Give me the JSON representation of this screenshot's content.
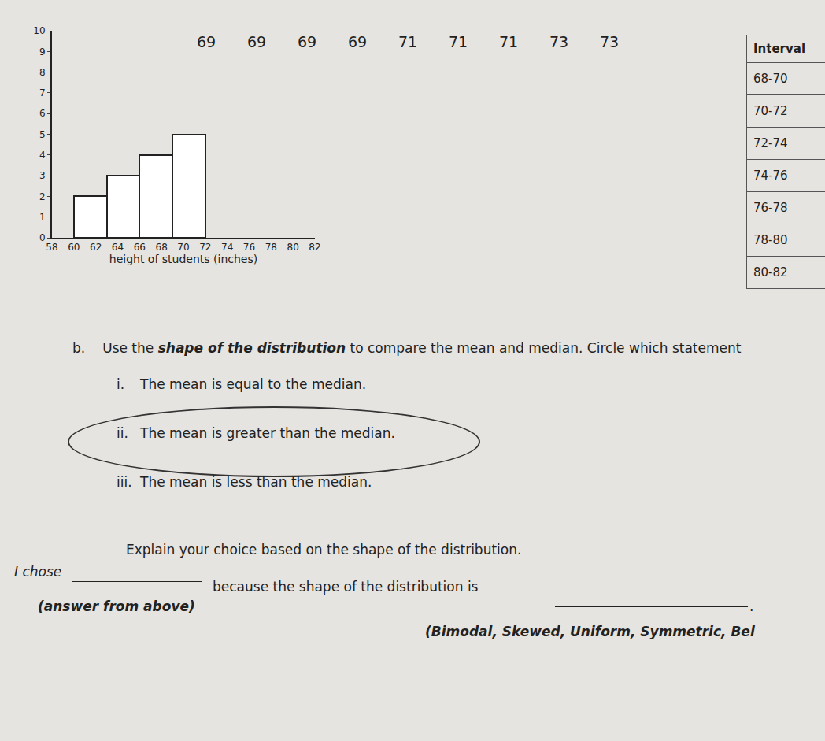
{
  "chart_data": {
    "type": "histogram",
    "xlabel": "height of students (inches)",
    "bins": [
      60,
      63,
      66,
      69,
      72
    ],
    "values": [
      2,
      3,
      4,
      5
    ],
    "color": "#ffffff",
    "xlim": [
      58,
      82
    ],
    "xticks": [
      58,
      60,
      62,
      64,
      66,
      68,
      70,
      72,
      74,
      76,
      78,
      80,
      82
    ],
    "ylim": [
      0,
      10
    ],
    "yticks": [
      0,
      1,
      2,
      3,
      4,
      5,
      6,
      7,
      8,
      9,
      10
    ],
    "grid": false
  },
  "worksheet": {
    "data_values": [
      69,
      69,
      69,
      69,
      71,
      71,
      71,
      73,
      73
    ],
    "table": {
      "header": "Interval",
      "rows": [
        "68-70",
        "70-72",
        "72-74",
        "74-76",
        "76-78",
        "78-80",
        "80-82"
      ]
    },
    "question": {
      "label": "b.",
      "text": "Use the shape of the distribution to compare the mean and median. Circle which statement"
    },
    "options": [
      {
        "label": "i.",
        "text": "The mean is equal to the median."
      },
      {
        "label": "ii.",
        "text": "The mean is greater than the median.",
        "circled": true
      },
      {
        "label": "iii.",
        "text": "The mean is less than the median."
      }
    ],
    "explain": "Explain your choice based on the shape of the distribution.",
    "sentence": {
      "start": "I chose",
      "middle": "because the shape of the distribution is",
      "end": ".",
      "hint1": "(answer from above)",
      "hint2": "(Bimodal, Skewed, Uniform, Symmetric, Bel"
    }
  }
}
